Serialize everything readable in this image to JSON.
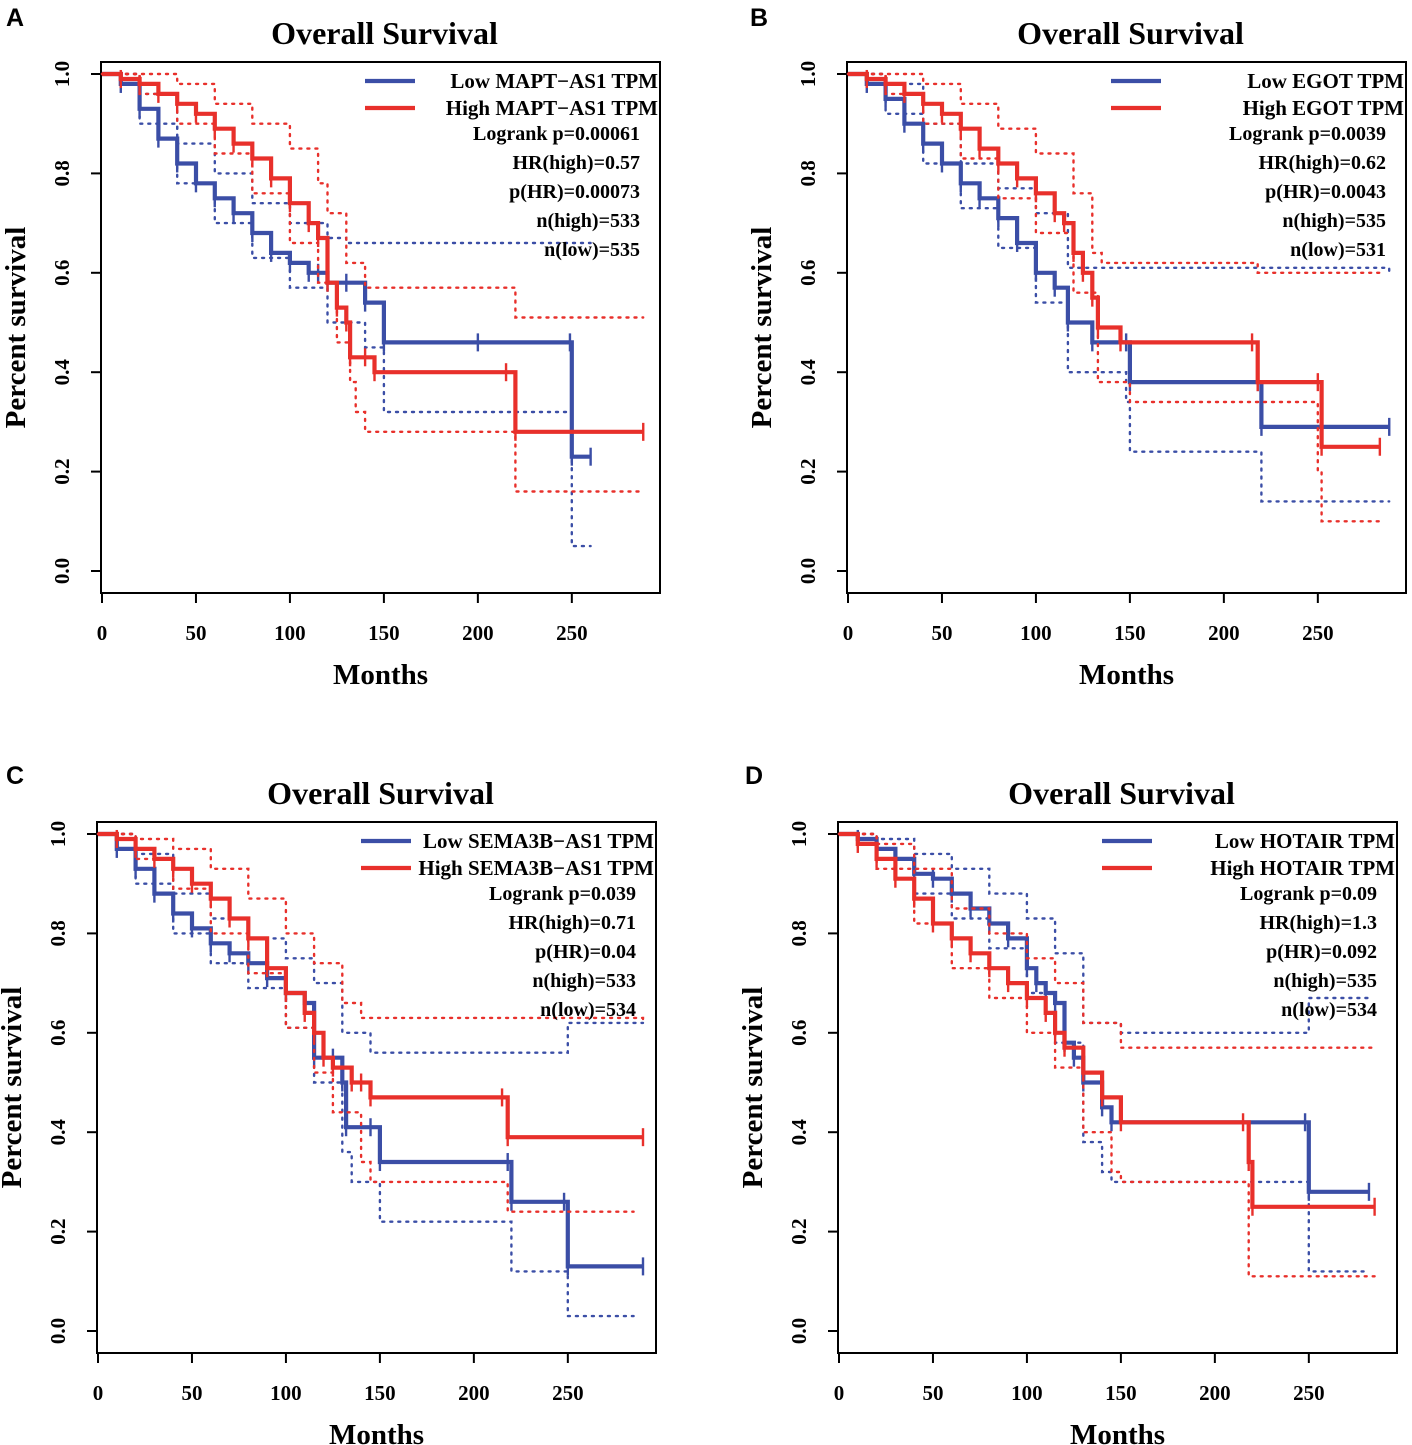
{
  "chart_data": [
    {
      "panel_label": "A",
      "type": "line",
      "title": "Overall Survival",
      "xlabel": "Months",
      "ylabel": "Percent survival",
      "xlim": [
        0,
        290
      ],
      "ylim": [
        0,
        1
      ],
      "xticks": [
        "0",
        "50",
        "100",
        "150",
        "200",
        "250"
      ],
      "yticks": [
        "0.0",
        "0.2",
        "0.4",
        "0.6",
        "0.8",
        "1.0"
      ],
      "legend": {
        "position": "top-right",
        "entries": [
          "Low MAPT−AS1 TPM",
          "High MAPT−AS1 TPM"
        ],
        "stats": [
          "Logrank p=0.00061",
          "HR(high)=0.57",
          "p(HR)=0.00073",
          "n(high)=533",
          "n(low)=535"
        ]
      },
      "series": [
        {
          "name": "Low MAPT−AS1 TPM",
          "color": "#3b4ea6",
          "x": [
            0,
            10,
            20,
            30,
            40,
            50,
            60,
            70,
            80,
            90,
            100,
            110,
            115,
            120,
            130,
            140,
            150,
            200,
            249,
            250,
            260
          ],
          "y": [
            1.0,
            0.98,
            0.93,
            0.87,
            0.82,
            0.78,
            0.75,
            0.72,
            0.68,
            0.64,
            0.62,
            0.6,
            0.6,
            0.58,
            0.58,
            0.54,
            0.46,
            0.46,
            0.46,
            0.23,
            0.23
          ],
          "ci_upper_x": [
            0,
            20,
            40,
            60,
            80,
            100,
            120,
            130,
            260
          ],
          "ci_upper": [
            1.0,
            0.96,
            0.86,
            0.8,
            0.74,
            0.7,
            0.67,
            0.66,
            0.66
          ],
          "ci_lower_x": [
            0,
            20,
            40,
            60,
            80,
            100,
            120,
            140,
            150,
            249,
            250,
            260
          ],
          "ci_lower": [
            1.0,
            0.9,
            0.78,
            0.7,
            0.63,
            0.57,
            0.5,
            0.45,
            0.32,
            0.32,
            0.05,
            0.05
          ]
        },
        {
          "name": "High MAPT−AS1 TPM",
          "color": "#e8302b",
          "x": [
            0,
            10,
            20,
            30,
            40,
            50,
            60,
            70,
            80,
            90,
            100,
            110,
            115,
            120,
            125,
            130,
            132,
            140,
            145,
            215,
            220,
            288
          ],
          "y": [
            1.0,
            0.99,
            0.98,
            0.96,
            0.94,
            0.92,
            0.89,
            0.86,
            0.83,
            0.79,
            0.74,
            0.7,
            0.67,
            0.58,
            0.53,
            0.5,
            0.43,
            0.43,
            0.4,
            0.4,
            0.28,
            0.28
          ],
          "ci_upper_x": [
            0,
            20,
            40,
            60,
            80,
            100,
            115,
            120,
            130,
            140,
            215,
            220,
            288
          ],
          "ci_upper": [
            1.0,
            1.0,
            0.98,
            0.94,
            0.9,
            0.85,
            0.78,
            0.72,
            0.62,
            0.57,
            0.57,
            0.51,
            0.51
          ],
          "ci_lower_x": [
            0,
            20,
            40,
            60,
            80,
            100,
            115,
            125,
            132,
            135,
            140,
            215,
            220,
            288
          ],
          "ci_lower": [
            1.0,
            0.96,
            0.9,
            0.84,
            0.76,
            0.66,
            0.58,
            0.46,
            0.38,
            0.32,
            0.28,
            0.28,
            0.16,
            0.16
          ]
        }
      ]
    },
    {
      "panel_label": "B",
      "type": "line",
      "title": "Overall Survival",
      "xlabel": "Months",
      "ylabel": "Percent survival",
      "xlim": [
        0,
        290
      ],
      "ylim": [
        0,
        1
      ],
      "xticks": [
        "0",
        "50",
        "100",
        "150",
        "200",
        "250"
      ],
      "yticks": [
        "0.0",
        "0.2",
        "0.4",
        "0.6",
        "0.8",
        "1.0"
      ],
      "legend": {
        "position": "top-right",
        "entries": [
          "Low EGOT TPM",
          "High EGOT TPM"
        ],
        "stats": [
          "Logrank p=0.0039",
          "HR(high)=0.62",
          "p(HR)=0.0043",
          "n(high)=535",
          "n(low)=531"
        ]
      },
      "series": [
        {
          "name": "Low EGOT TPM",
          "color": "#3b4ea6",
          "x": [
            0,
            10,
            20,
            30,
            40,
            50,
            60,
            70,
            80,
            90,
            100,
            110,
            117,
            130,
            148,
            150,
            218,
            220,
            288
          ],
          "y": [
            1.0,
            0.98,
            0.95,
            0.9,
            0.86,
            0.82,
            0.78,
            0.75,
            0.71,
            0.66,
            0.6,
            0.57,
            0.5,
            0.46,
            0.46,
            0.38,
            0.38,
            0.29,
            0.29
          ],
          "ci_upper_x": [
            0,
            20,
            40,
            60,
            80,
            100,
            117,
            150,
            288
          ],
          "ci_upper": [
            1.0,
            0.98,
            0.9,
            0.82,
            0.77,
            0.72,
            0.61,
            0.61,
            0.6
          ],
          "ci_lower_x": [
            0,
            20,
            40,
            60,
            80,
            100,
            117,
            148,
            150,
            218,
            220,
            288
          ],
          "ci_lower": [
            1.0,
            0.92,
            0.82,
            0.73,
            0.65,
            0.54,
            0.4,
            0.34,
            0.24,
            0.24,
            0.14,
            0.14
          ]
        },
        {
          "name": "High EGOT TPM",
          "color": "#e8302b",
          "x": [
            0,
            10,
            20,
            30,
            40,
            50,
            60,
            70,
            80,
            90,
            100,
            110,
            115,
            120,
            125,
            130,
            133,
            145,
            215,
            218,
            250,
            252,
            283
          ],
          "y": [
            1.0,
            0.99,
            0.98,
            0.96,
            0.94,
            0.92,
            0.89,
            0.85,
            0.82,
            0.79,
            0.76,
            0.72,
            0.7,
            0.64,
            0.6,
            0.55,
            0.49,
            0.46,
            0.46,
            0.38,
            0.38,
            0.25,
            0.25
          ],
          "ci_upper_x": [
            0,
            20,
            40,
            60,
            80,
            100,
            120,
            130,
            135,
            215,
            218,
            283
          ],
          "ci_upper": [
            1.0,
            1.0,
            0.98,
            0.94,
            0.89,
            0.84,
            0.76,
            0.64,
            0.62,
            0.62,
            0.6,
            0.6
          ],
          "ci_lower_x": [
            0,
            20,
            40,
            60,
            80,
            100,
            120,
            133,
            150,
            218,
            250,
            252,
            283
          ],
          "ci_lower": [
            1.0,
            0.96,
            0.9,
            0.83,
            0.75,
            0.68,
            0.56,
            0.38,
            0.34,
            0.34,
            0.2,
            0.1,
            0.1
          ]
        }
      ]
    },
    {
      "panel_label": "C",
      "type": "line",
      "title": "Overall Survival",
      "xlabel": "Months",
      "ylabel": "Percent survival",
      "xlim": [
        0,
        290
      ],
      "ylim": [
        0,
        1
      ],
      "xticks": [
        "0",
        "50",
        "100",
        "150",
        "200",
        "250"
      ],
      "yticks": [
        "0.0",
        "0.2",
        "0.4",
        "0.6",
        "0.8",
        "1.0"
      ],
      "legend": {
        "position": "top-right",
        "entries": [
          "Low SEMA3B−AS1 TPM",
          "High SEMA3B−AS1 TPM"
        ],
        "stats": [
          "Logrank p=0.039",
          "HR(high)=0.71",
          "p(HR)=0.04",
          "n(high)=533",
          "n(low)=534"
        ]
      },
      "series": [
        {
          "name": "Low SEMA3B−AS1 TPM",
          "color": "#3b4ea6",
          "x": [
            0,
            10,
            20,
            30,
            40,
            50,
            60,
            70,
            80,
            90,
            100,
            110,
            115,
            125,
            130,
            132,
            145,
            150,
            218,
            220,
            248,
            250,
            290
          ],
          "y": [
            1.0,
            0.97,
            0.93,
            0.88,
            0.84,
            0.81,
            0.78,
            0.76,
            0.74,
            0.71,
            0.68,
            0.66,
            0.55,
            0.55,
            0.5,
            0.41,
            0.41,
            0.34,
            0.34,
            0.26,
            0.26,
            0.13,
            0.13
          ],
          "ci_upper_x": [
            0,
            20,
            40,
            60,
            80,
            100,
            115,
            130,
            145,
            150,
            210,
            250,
            290
          ],
          "ci_upper": [
            1.0,
            0.96,
            0.88,
            0.83,
            0.79,
            0.75,
            0.7,
            0.6,
            0.56,
            0.56,
            0.56,
            0.62,
            0.62
          ],
          "ci_lower_x": [
            0,
            20,
            40,
            60,
            80,
            100,
            115,
            130,
            135,
            150,
            220,
            248,
            250,
            285
          ],
          "ci_lower": [
            1.0,
            0.9,
            0.8,
            0.74,
            0.69,
            0.61,
            0.5,
            0.36,
            0.3,
            0.22,
            0.12,
            0.12,
            0.03,
            0.03
          ]
        },
        {
          "name": "High SEMA3B−AS1 TPM",
          "color": "#e8302b",
          "x": [
            0,
            10,
            20,
            30,
            40,
            50,
            60,
            70,
            80,
            90,
            100,
            110,
            115,
            120,
            125,
            135,
            140,
            145,
            215,
            218,
            290
          ],
          "y": [
            1.0,
            0.99,
            0.97,
            0.95,
            0.93,
            0.9,
            0.87,
            0.83,
            0.79,
            0.73,
            0.68,
            0.64,
            0.6,
            0.55,
            0.53,
            0.5,
            0.5,
            0.47,
            0.47,
            0.39,
            0.39
          ],
          "ci_upper_x": [
            0,
            20,
            40,
            60,
            80,
            100,
            115,
            130,
            140,
            215,
            290
          ],
          "ci_upper": [
            1.0,
            0.99,
            0.97,
            0.93,
            0.87,
            0.8,
            0.74,
            0.66,
            0.63,
            0.63,
            0.62
          ],
          "ci_lower_x": [
            0,
            20,
            40,
            60,
            80,
            100,
            115,
            125,
            140,
            145,
            218,
            285
          ],
          "ci_lower": [
            1.0,
            0.95,
            0.89,
            0.8,
            0.72,
            0.61,
            0.52,
            0.44,
            0.34,
            0.3,
            0.24,
            0.24
          ]
        }
      ]
    },
    {
      "panel_label": "D",
      "type": "line",
      "title": "Overall Survival",
      "xlabel": "Months",
      "ylabel": "Percent survival",
      "xlim": [
        0,
        290
      ],
      "ylim": [
        0,
        1
      ],
      "xticks": [
        "0",
        "50",
        "100",
        "150",
        "200",
        "250"
      ],
      "yticks": [
        "0.0",
        "0.2",
        "0.4",
        "0.6",
        "0.8",
        "1.0"
      ],
      "legend": {
        "position": "top-right",
        "entries": [
          "Low HOTAIR TPM",
          "High HOTAIR TPM"
        ],
        "stats": [
          "Logrank p=0.09",
          "HR(high)=1.3",
          "p(HR)=0.092",
          "n(high)=535",
          "n(low)=534"
        ]
      },
      "series": [
        {
          "name": "Low HOTAIR TPM",
          "color": "#3b4ea6",
          "x": [
            0,
            10,
            20,
            30,
            40,
            50,
            60,
            70,
            80,
            90,
            100,
            105,
            110,
            115,
            120,
            125,
            130,
            140,
            145,
            248,
            250,
            282
          ],
          "y": [
            1.0,
            0.99,
            0.97,
            0.95,
            0.92,
            0.91,
            0.88,
            0.85,
            0.82,
            0.79,
            0.73,
            0.7,
            0.68,
            0.66,
            0.58,
            0.55,
            0.5,
            0.45,
            0.42,
            0.42,
            0.28,
            0.28
          ],
          "ci_upper_x": [
            0,
            20,
            40,
            60,
            80,
            100,
            115,
            130,
            150,
            248,
            250,
            282
          ],
          "ci_upper": [
            1.0,
            0.99,
            0.96,
            0.93,
            0.88,
            0.83,
            0.76,
            0.62,
            0.6,
            0.6,
            0.67,
            0.67
          ],
          "ci_lower_x": [
            0,
            20,
            40,
            60,
            80,
            100,
            115,
            130,
            140,
            145,
            248,
            250,
            282
          ],
          "ci_lower": [
            1.0,
            0.95,
            0.88,
            0.83,
            0.77,
            0.68,
            0.58,
            0.38,
            0.32,
            0.3,
            0.3,
            0.12,
            0.12
          ]
        },
        {
          "name": "High HOTAIR TPM",
          "color": "#e8302b",
          "x": [
            0,
            10,
            20,
            30,
            40,
            50,
            60,
            70,
            80,
            90,
            100,
            110,
            115,
            120,
            130,
            140,
            150,
            215,
            218,
            220,
            285
          ],
          "y": [
            1.0,
            0.98,
            0.95,
            0.91,
            0.87,
            0.82,
            0.79,
            0.76,
            0.73,
            0.7,
            0.67,
            0.64,
            0.6,
            0.57,
            0.52,
            0.47,
            0.42,
            0.42,
            0.34,
            0.25,
            0.25
          ],
          "ci_upper_x": [
            0,
            20,
            40,
            60,
            80,
            100,
            115,
            130,
            150,
            285
          ],
          "ci_upper": [
            1.0,
            0.98,
            0.93,
            0.85,
            0.8,
            0.75,
            0.7,
            0.62,
            0.57,
            0.57
          ],
          "ci_lower_x": [
            0,
            20,
            40,
            60,
            80,
            100,
            115,
            130,
            145,
            150,
            215,
            218,
            285
          ],
          "ci_lower": [
            1.0,
            0.93,
            0.82,
            0.73,
            0.67,
            0.6,
            0.53,
            0.4,
            0.32,
            0.3,
            0.3,
            0.11,
            0.11
          ]
        }
      ]
    }
  ]
}
